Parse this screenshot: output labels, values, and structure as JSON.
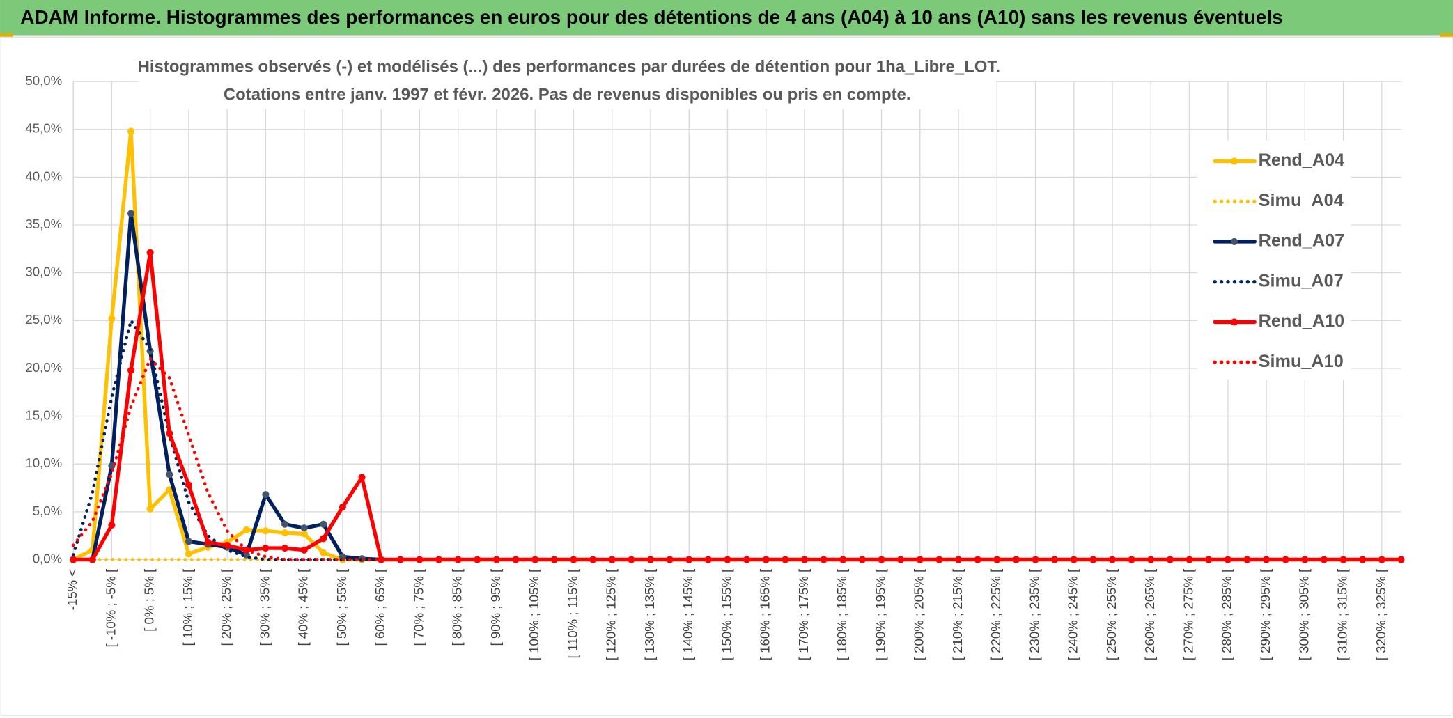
{
  "header": {
    "title": "ADAM Informe. Histogrammes des performances en euros pour des détentions de 4 ans (A04) à 10 ans (A10) sans les revenus éventuels"
  },
  "chart_data": {
    "type": "line",
    "title": "Histogrammes observés (-) et modélisés (...) des performances par durées de détention pour 1ha_Libre_LOT.",
    "subtitle": "Cotations entre janv. 1997 et févr. 2026. Pas de revenus disponibles ou pris en compte.",
    "categories": [
      "-15% <",
      null,
      "[ -10% ; -5% [",
      null,
      "[ 0% ; 5% [",
      null,
      "[ 10% ; 15% [",
      null,
      "[ 20% ; 25% [",
      null,
      "[ 30% ; 35% [",
      null,
      "[ 40% ; 45% [",
      null,
      "[ 50% ; 55% [",
      null,
      "[ 60% ; 65% [",
      null,
      "[ 70% ; 75% [",
      null,
      "[ 80% ; 85% [",
      null,
      "[ 90% ; 95% [",
      null,
      "[ 100% ; 105% [",
      null,
      "[ 110% ; 115% [",
      null,
      "[ 120% ; 125% [",
      null,
      "[ 130% ; 135% [",
      null,
      "[ 140% ; 145% [",
      null,
      "[ 150% ; 155% [",
      null,
      "[ 160% ; 165% [",
      null,
      "[ 170% ; 175% [",
      null,
      "[ 180% ; 185% [",
      null,
      "[ 190% ; 195% [",
      null,
      "[ 200% ; 205% [",
      null,
      "[ 210% ; 215% [",
      null,
      "[ 220% ; 225% [",
      null,
      "[ 230% ; 235% [",
      null,
      "[ 240% ; 245% [",
      null,
      "[ 250% ; 255% [",
      null,
      "[ 260% ; 265% [",
      null,
      "[ 270% ; 275% [",
      null,
      "[ 280% ; 285% [",
      null,
      "[ 290% ; 295% [",
      null,
      "[ 300% ; 305% [",
      null,
      "[ 310% ; 315% [",
      null,
      "[ 320% ; 325% [",
      null
    ],
    "series": [
      {
        "name": "Rend_A04",
        "color": "#ffc000",
        "style": "solid",
        "marker": true,
        "values": [
          0,
          1,
          25.2,
          44.8,
          5.3,
          7.3,
          0.6,
          1.3,
          1.8,
          3.1,
          3.0,
          2.8,
          2.7,
          0.7,
          0,
          0,
          0,
          0,
          0,
          0,
          0,
          0,
          0,
          0,
          0,
          0,
          0,
          0,
          0,
          0,
          0,
          0,
          0,
          0,
          0,
          0,
          0,
          0,
          0,
          0,
          0,
          0,
          0,
          0,
          0,
          0,
          0,
          0,
          0,
          0,
          0,
          0,
          0,
          0,
          0,
          0,
          0,
          0,
          0,
          0,
          0,
          0,
          0,
          0,
          0,
          0,
          0,
          0,
          0,
          0
        ]
      },
      {
        "name": "Simu_A04",
        "color": "#ffc000",
        "style": "dotted",
        "marker": false,
        "values": [
          0,
          0,
          0,
          0,
          0,
          0,
          0,
          0,
          0,
          0,
          0,
          0,
          0,
          0,
          0,
          0,
          0,
          0,
          0,
          0,
          0,
          0,
          0,
          0,
          0,
          0,
          0,
          0,
          0,
          0,
          0,
          0,
          0,
          0,
          0,
          0,
          0,
          0,
          0,
          0,
          0,
          0,
          0,
          0,
          0,
          0,
          0,
          0,
          0,
          0,
          0,
          0,
          0,
          0,
          0,
          0,
          0,
          0,
          0,
          0,
          0,
          0,
          0,
          0,
          0,
          0,
          0,
          0,
          0,
          0
        ]
      },
      {
        "name": "Rend_A07",
        "color": "#002060",
        "marker_color": "#44546a",
        "style": "solid",
        "marker": true,
        "values": [
          0,
          0,
          9.8,
          36.2,
          21.8,
          8.9,
          1.9,
          1.6,
          1.3,
          0.5,
          6.8,
          3.7,
          3.3,
          3.7,
          0.3,
          0.1,
          0,
          0,
          0,
          0,
          0,
          0,
          0,
          0,
          0,
          0,
          0,
          0,
          0,
          0,
          0,
          0,
          0,
          0,
          0,
          0,
          0,
          0,
          0,
          0,
          0,
          0,
          0,
          0,
          0,
          0,
          0,
          0,
          0,
          0,
          0,
          0,
          0,
          0,
          0,
          0,
          0,
          0,
          0,
          0,
          0,
          0,
          0,
          0,
          0,
          0,
          0,
          0,
          0,
          0
        ]
      },
      {
        "name": "Simu_A07",
        "color": "#002060",
        "style": "dotted",
        "marker": false,
        "values": [
          0.5,
          7,
          17,
          25,
          22,
          13,
          6,
          2.5,
          1,
          0.3,
          0,
          0,
          0,
          0,
          0,
          0,
          0,
          0,
          0,
          0,
          0,
          0,
          0,
          0,
          0,
          0,
          0,
          0,
          0,
          0,
          0,
          0,
          0,
          0,
          0,
          0,
          0,
          0,
          0,
          0,
          0,
          0,
          0,
          0,
          0,
          0,
          0,
          0,
          0,
          0,
          0,
          0,
          0,
          0,
          0,
          0,
          0,
          0,
          0,
          0,
          0,
          0,
          0,
          0,
          0,
          0,
          0,
          0,
          0,
          0
        ]
      },
      {
        "name": "Rend_A10",
        "color": "#ff0000",
        "style": "solid",
        "marker": true,
        "values": [
          0,
          0,
          3.6,
          19.8,
          32.1,
          13.2,
          7.8,
          1.8,
          1.5,
          1.0,
          1.2,
          1.2,
          1.0,
          2.2,
          5.5,
          8.6,
          0,
          0,
          0,
          0,
          0,
          0,
          0,
          0,
          0,
          0,
          0,
          0,
          0,
          0,
          0,
          0,
          0,
          0,
          0,
          0,
          0,
          0,
          0,
          0,
          0,
          0,
          0,
          0,
          0,
          0,
          0,
          0,
          0,
          0,
          0,
          0,
          0,
          0,
          0,
          0,
          0,
          0,
          0,
          0,
          0,
          0,
          0,
          0,
          0,
          0,
          0,
          0,
          0,
          0
        ]
      },
      {
        "name": "Simu_A10",
        "color": "#ff0000",
        "style": "dotted",
        "marker": false,
        "values": [
          1.5,
          4,
          9,
          16,
          21,
          19,
          13,
          7,
          3,
          1,
          0.3,
          0,
          0,
          0,
          0,
          0,
          0,
          0,
          0,
          0,
          0,
          0,
          0,
          0,
          0,
          0,
          0,
          0,
          0,
          0,
          0,
          0,
          0,
          0,
          0,
          0,
          0,
          0,
          0,
          0,
          0,
          0,
          0,
          0,
          0,
          0,
          0,
          0,
          0,
          0,
          0,
          0,
          0,
          0,
          0,
          0,
          0,
          0,
          0,
          0,
          0,
          0,
          0,
          0,
          0,
          0,
          0,
          0,
          0,
          0
        ]
      }
    ],
    "ylim": [
      0,
      50
    ],
    "yticks": [
      {
        "value": 0,
        "label": "0,0%"
      },
      {
        "value": 5,
        "label": "5,0%"
      },
      {
        "value": 10,
        "label": "10,0%"
      },
      {
        "value": 15,
        "label": "15,0%"
      },
      {
        "value": 20,
        "label": "20,0%"
      },
      {
        "value": 25,
        "label": "25,0%"
      },
      {
        "value": 30,
        "label": "30,0%"
      },
      {
        "value": 35,
        "label": "35,0%"
      },
      {
        "value": 40,
        "label": "40,0%"
      },
      {
        "value": 45,
        "label": "45,0%"
      },
      {
        "value": 50,
        "label": "50,0%"
      }
    ],
    "grid": true,
    "legend": "right"
  }
}
